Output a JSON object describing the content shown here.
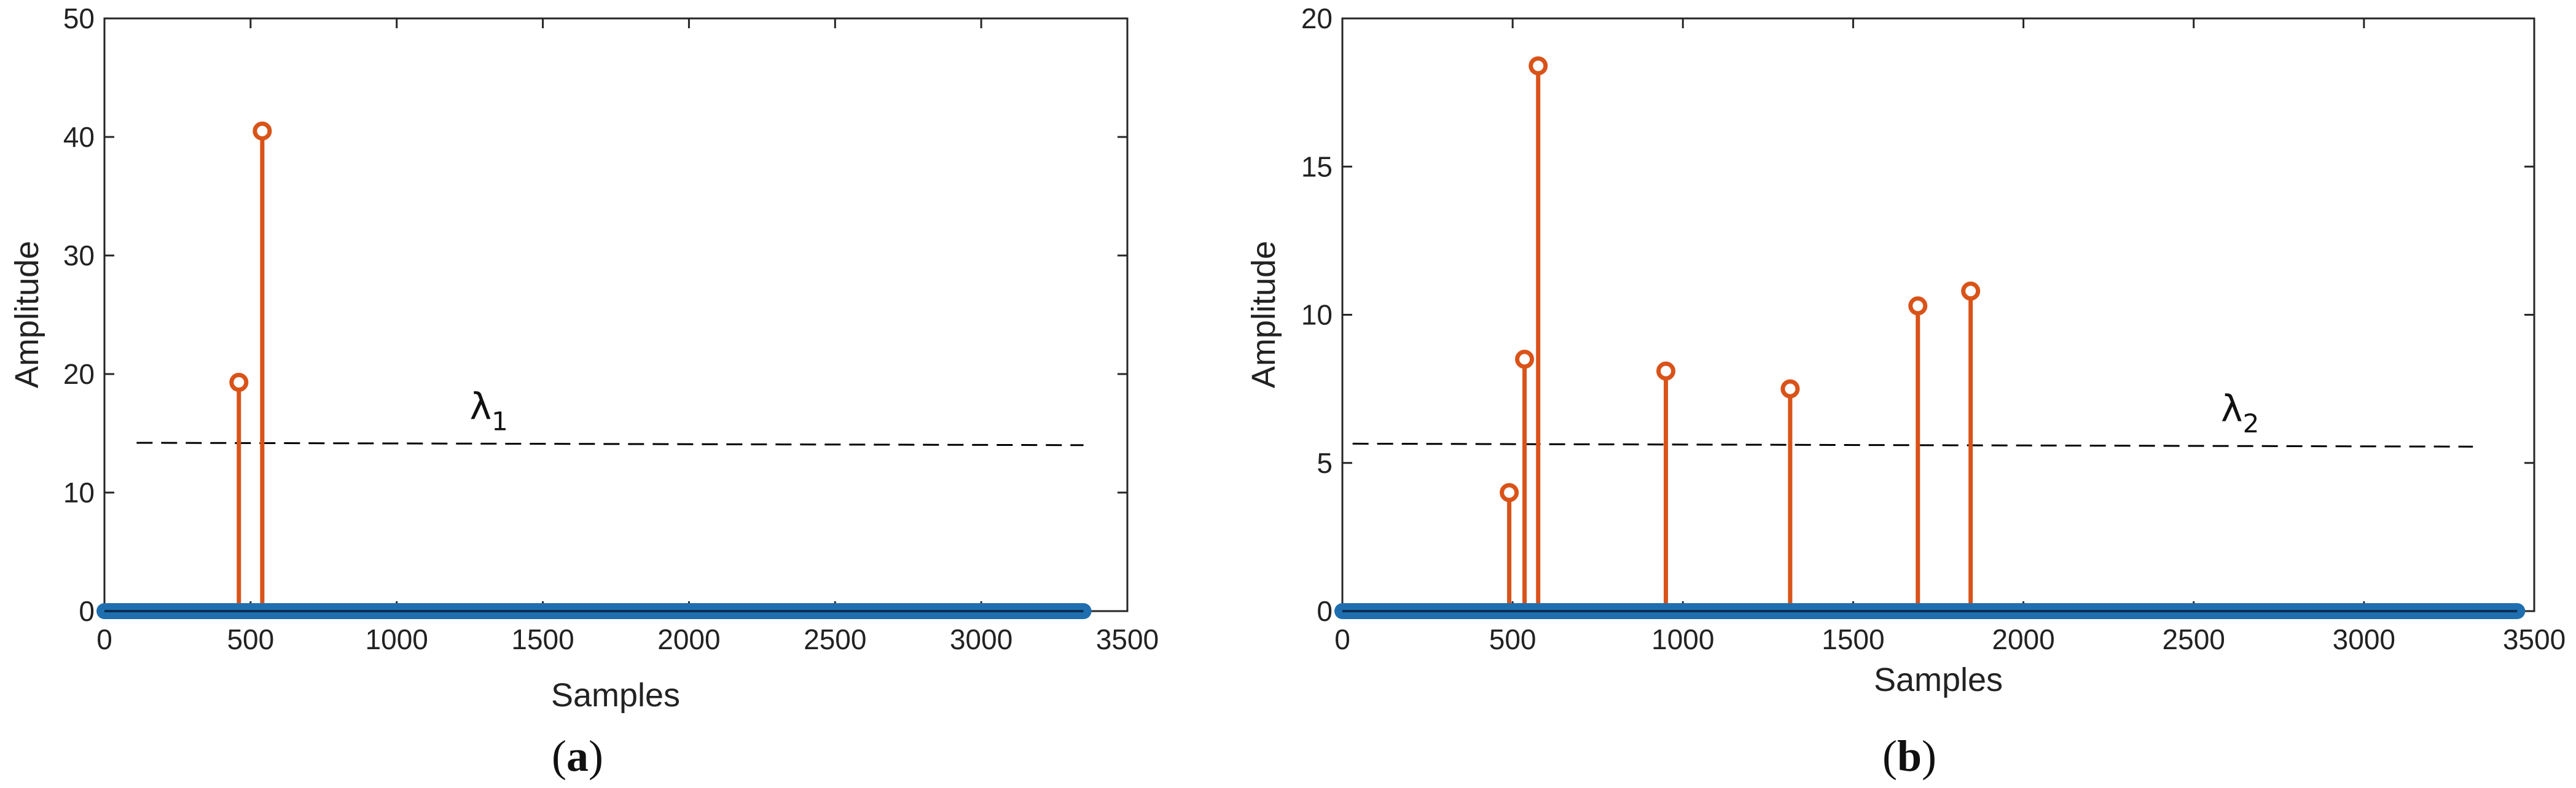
{
  "colors": {
    "baseline": "#1f6fb0",
    "stems": "#d95319",
    "threshold": "#000000",
    "axes": "#262626"
  },
  "chart_data": [
    {
      "type": "stem",
      "panel_label": "(a)",
      "caption_parts": [
        "(",
        "a",
        ")"
      ],
      "xlabel": "Samples",
      "ylabel": "Amplitude",
      "xlim": [
        0,
        3500
      ],
      "ylim": [
        0,
        50
      ],
      "xticks": [
        0,
        500,
        1000,
        1500,
        2000,
        2500,
        3000,
        3500
      ],
      "yticks": [
        0,
        10,
        20,
        30,
        40,
        50
      ],
      "grid": false,
      "baseline": {
        "x_start": 0,
        "x_end": 3350,
        "y": 0
      },
      "stems": [
        {
          "x": 460,
          "y": 19.3
        },
        {
          "x": 540,
          "y": 40.5
        }
      ],
      "threshold": {
        "label_base": "λ",
        "label_sub": "1",
        "x_start": 110,
        "x_end": 3350,
        "y_start": 14.2,
        "y_end": 14.0,
        "label_x": 1250,
        "label_y": 16.2
      }
    },
    {
      "type": "stem",
      "panel_label": "(b)",
      "caption_parts": [
        "(",
        "b",
        ")"
      ],
      "xlabel": "Samples",
      "ylabel": "Amplitude",
      "xlim": [
        0,
        3500
      ],
      "ylim": [
        0,
        20
      ],
      "xticks": [
        0,
        500,
        1000,
        1500,
        2000,
        2500,
        3000,
        3500
      ],
      "yticks": [
        0,
        5,
        10,
        15,
        20
      ],
      "grid": false,
      "baseline": {
        "x_start": 0,
        "x_end": 3450,
        "y": 0
      },
      "stems": [
        {
          "x": 490,
          "y": 4.0
        },
        {
          "x": 535,
          "y": 8.5
        },
        {
          "x": 575,
          "y": 18.4
        },
        {
          "x": 950,
          "y": 8.1
        },
        {
          "x": 1315,
          "y": 7.5
        },
        {
          "x": 1690,
          "y": 10.3
        },
        {
          "x": 1845,
          "y": 10.8
        }
      ],
      "threshold": {
        "label_base": "λ",
        "label_sub": "2",
        "x_start": 30,
        "x_end": 3320,
        "y_start": 5.65,
        "y_end": 5.55,
        "label_x": 2580,
        "label_y": 6.4
      }
    }
  ]
}
